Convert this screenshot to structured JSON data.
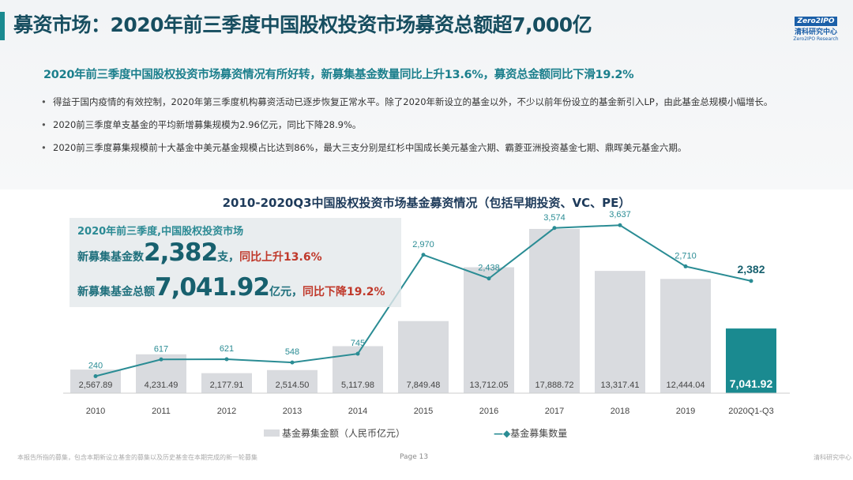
{
  "header": {
    "title": "募资市场：2020年前三季度中国股权投资市场募资总额超7,000亿",
    "logo_box": "Zero2IPO",
    "logo_cn": "清科研究中心",
    "logo_en": "Zero2IPO Research"
  },
  "subtitle": "2020年前三季度中国股权投资市场募资情况有所好转，新募集基金数量同比上升13.6%，募资总金额同比下滑19.2%",
  "bullets": [
    "得益于国内疫情的有效控制，2020年第三季度机构募资活动已逐步恢复正常水平。除了2020年新设立的基金以外，不少以前年份设立的基金新引入LP，由此基金总规模小幅增长。",
    "2020前三季度单支基金的平均新增募集规模为2.96亿元，同比下降28.9%。",
    "2020前三季度募集规模前十大基金中美元基金规模占比达到86%，最大三支分别是红杉中国成长美元基金六期、霸菱亚洲投资基金七期、鼎晖美元基金六期。"
  ],
  "highlight": {
    "line1": "2020年前三季度,中国股权投资市场",
    "count_label": "新募集基金数",
    "count": "2,382",
    "count_unit": "支，",
    "count_change": "同比上升13.6%",
    "amount_label": "新募集基金总额",
    "amount": "7,041.92",
    "amount_unit": "亿元，",
    "amount_change": "同比下降19.2%"
  },
  "chart_data": {
    "type": "bar+line",
    "title": "2010-2020Q3中国股权投资市场基金募资情况（包括早期投资、VC、PE）",
    "categories": [
      "2010",
      "2011",
      "2012",
      "2013",
      "2014",
      "2015",
      "2016",
      "2017",
      "2018",
      "2019",
      "2020Q1-Q3"
    ],
    "series": [
      {
        "name": "基金募集金额（人民币亿元）",
        "type": "bar",
        "values": [
          2567.89,
          4231.49,
          2177.91,
          2514.5,
          5117.98,
          7849.48,
          13712.05,
          17888.72,
          13317.41,
          12444.04,
          7041.92
        ],
        "labels": [
          "2,567.89",
          "4,231.49",
          "2,177.91",
          "2,514.50",
          "5,117.98",
          "7,849.48",
          "13,712.05",
          "17,888.72",
          "13,317.41",
          "12,444.04",
          "7,041.92"
        ],
        "color": "#d9dbdf",
        "highlight_color": "#1a8a90"
      },
      {
        "name": "基金募集数量",
        "type": "line",
        "values": [
          240,
          617,
          621,
          548,
          745,
          2970,
          2438,
          3574,
          3637,
          2710,
          2382
        ],
        "labels": [
          "240",
          "617",
          "621",
          "548",
          "745",
          "2,970",
          "2,438",
          "3,574",
          "3,637",
          "2,710",
          "2,382"
        ],
        "color": "#2a8c94"
      }
    ],
    "legend": "bottom",
    "grid": false
  },
  "footer": {
    "note": "本报告所指的募集，包含本期新设立基金的募集以及历史基金在本期完成的新一轮募集",
    "page": "Page  13",
    "brand": "清科研究中心"
  }
}
